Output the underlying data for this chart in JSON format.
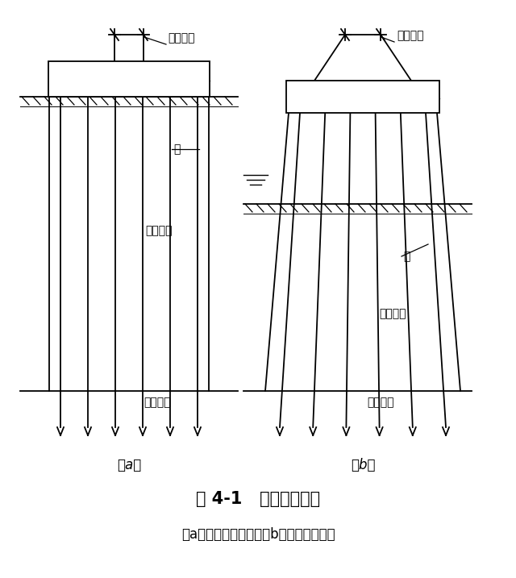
{
  "title": "图 4-1   桩基础示意图",
  "subtitle": "（a）低承台桩基础；（b）高承台桩基础",
  "label_a": "（a）",
  "label_b": "（b）",
  "bg_color": "#ffffff",
  "line_color": "#000000",
  "fig_width": 6.4,
  "fig_height": 7.17,
  "title_fontsize": 15,
  "subtitle_fontsize": 12,
  "label_fontsize": 12,
  "anno_fontsize": 10
}
